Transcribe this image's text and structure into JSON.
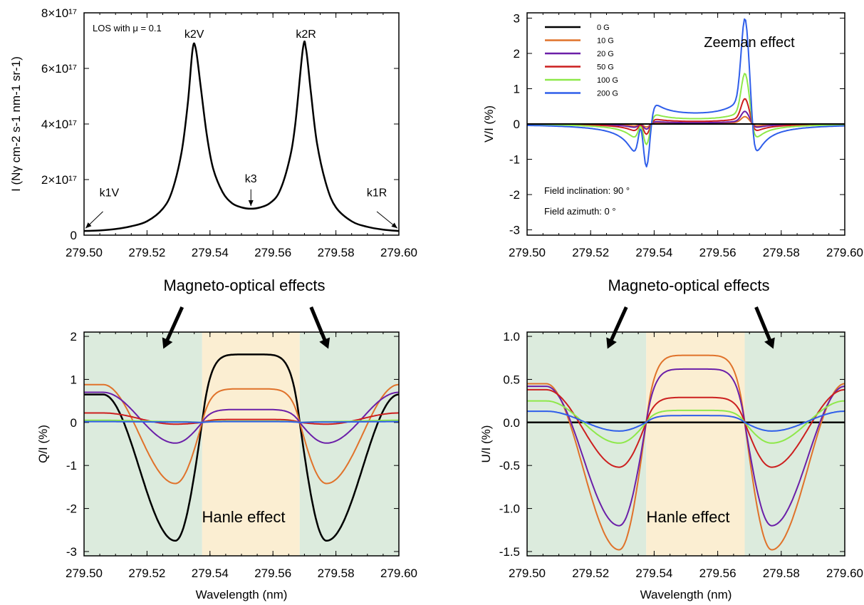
{
  "colors": {
    "0 G": "#000000",
    "10 G": "#E0722A",
    "20 G": "#6B1FA8",
    "50 G": "#CC1F1F",
    "100 G": "#8EE84A",
    "200 G": "#2F5EEA",
    "moe_region": "#DCEBDD",
    "hanle_region": "#FBEED2"
  },
  "chart_data": [
    {
      "id": "intensity",
      "type": "line",
      "ylabel": "I (Nγ cm-2 s-1 nm-1 sr-1)",
      "annotation": "LOS with μ = 0.1",
      "xlim": [
        279.5,
        279.6
      ],
      "ylim": [
        0,
        8e+17
      ],
      "xticks": [
        "279.50",
        "279.52",
        "279.54",
        "279.56",
        "279.58",
        "279.60"
      ],
      "yticks": [
        "0",
        "2×10¹⁷",
        "4×10¹⁷",
        "6×10¹⁷",
        "8×10¹⁷"
      ],
      "series": [
        {
          "x": [
            279.5,
            279.505,
            279.51,
            279.515,
            279.52,
            279.525,
            279.528,
            279.531,
            279.533,
            279.5345,
            279.5355,
            279.537,
            279.539,
            279.541,
            279.544,
            279.547,
            279.55,
            279.553,
            279.556,
            279.559,
            279.562,
            279.565,
            279.567,
            279.5695,
            279.5705,
            279.572,
            279.574,
            279.577,
            279.58,
            279.585,
            279.59,
            279.595,
            279.6
          ],
          "values": [
            1.5e+16,
            1.7e+16,
            2.2e+16,
            3.2e+16,
            5e+16,
            9.5e+16,
            1.6e+17,
            3e+17,
            4.8e+17,
            6.7e+17,
            6.7e+17,
            5.4e+17,
            3.6e+17,
            2.4e+17,
            1.55e+17,
            1.15e+17,
            1e+17,
            9.5e+16,
            1e+17,
            1.15e+17,
            1.55e+17,
            2.6e+17,
            3.9e+17,
            6.7e+17,
            6.7e+17,
            5.2e+17,
            3.3e+17,
            1.8e+17,
            1e+17,
            5e+16,
            3e+16,
            2e+16,
            1.5e+16
          ]
        }
      ],
      "labels": [
        {
          "text": "k2V",
          "x": 279.535,
          "y": 7.1e+17
        },
        {
          "text": "k2R",
          "x": 279.5705,
          "y": 7.1e+17
        },
        {
          "text": "k3",
          "x": 279.553,
          "y": 1.9e+17
        },
        {
          "text": "k1V",
          "x": 279.508,
          "y": 1.4e+17
        },
        {
          "text": "k1R",
          "x": 279.593,
          "y": 1.4e+17
        }
      ],
      "arrows": [
        {
          "from": [
            279.553,
            1.65e+17
          ],
          "to": [
            279.553,
            1.05e+17
          ]
        },
        {
          "from": [
            279.506,
            8.5e+16
          ],
          "to": [
            279.5005,
            2.5e+16
          ]
        },
        {
          "from": [
            279.593,
            8.5e+16
          ],
          "to": [
            279.5995,
            2.5e+16
          ]
        }
      ]
    },
    {
      "id": "stokes_v",
      "type": "line",
      "title": "Zeeman effect",
      "ylabel": "V/I (%)",
      "xlim": [
        279.5,
        279.6
      ],
      "ylim": [
        -3.15,
        3.15
      ],
      "xticks": [
        "279.50",
        "279.52",
        "279.54",
        "279.56",
        "279.58",
        "279.60"
      ],
      "yticks": [
        "-3",
        "-2",
        "-1",
        "0",
        "1",
        "2",
        "3"
      ],
      "notes": [
        "Field inclination: 90 °",
        "Field azimuth: 0 °"
      ],
      "legend": {
        "position": "top-left",
        "entries": [
          "0 G",
          "10 G",
          "20 G",
          "50 G",
          "100 G",
          "200 G"
        ]
      },
      "series": [
        {
          "name": "0 G",
          "amp": 0
        },
        {
          "name": "10 G",
          "amp": 0.07
        },
        {
          "name": "20 G",
          "amp": 0.12
        },
        {
          "name": "50 G",
          "amp": 0.24
        },
        {
          "name": "100 G",
          "amp": 0.48
        },
        {
          "name": "200 G",
          "amp": 1.0
        }
      ]
    },
    {
      "id": "stokes_q",
      "type": "line",
      "ylabel": "Q/I (%)",
      "xlabel": "Wavelength (nm)",
      "xlim": [
        279.5,
        279.6
      ],
      "ylim": [
        -3.1,
        2.1
      ],
      "xticks": [
        "279.50",
        "279.52",
        "279.54",
        "279.56",
        "279.58",
        "279.60"
      ],
      "yticks": [
        "-3",
        "-2",
        "-1",
        "0",
        "1",
        "2"
      ],
      "annotations": [
        "Magneto-optical effects",
        "Hanle effect"
      ],
      "regions": [
        {
          "kind": "moe",
          "x": [
            279.5,
            279.5375
          ]
        },
        {
          "kind": "hanle",
          "x": [
            279.5375,
            279.5685
          ]
        },
        {
          "kind": "moe",
          "x": [
            279.5685,
            279.6
          ]
        }
      ],
      "series": [
        {
          "name": "0 G",
          "edge": 0.65,
          "dip": -2.75,
          "center": 1.58
        },
        {
          "name": "10 G",
          "edge": 0.88,
          "dip": -1.42,
          "center": 0.78
        },
        {
          "name": "20 G",
          "edge": 0.7,
          "dip": -0.48,
          "center": 0.3
        },
        {
          "name": "50 G",
          "edge": 0.22,
          "dip": -0.04,
          "center": 0.07
        },
        {
          "name": "100 G",
          "edge": 0.05,
          "dip": 0.02,
          "center": 0.03
        },
        {
          "name": "200 G",
          "edge": 0.02,
          "dip": 0.01,
          "center": 0.02
        }
      ]
    },
    {
      "id": "stokes_u",
      "type": "line",
      "ylabel": "U/I (%)",
      "xlabel": "Wavelength (nm)",
      "xlim": [
        279.5,
        279.6
      ],
      "ylim": [
        -1.55,
        1.05
      ],
      "xticks": [
        "279.50",
        "279.52",
        "279.54",
        "279.56",
        "279.58",
        "279.60"
      ],
      "yticks": [
        "-1.5",
        "-1.0",
        "-0.5",
        "0.0",
        "0.5",
        "1.0"
      ],
      "annotations": [
        "Magneto-optical effects",
        "Hanle effect"
      ],
      "regions": [
        {
          "kind": "moe",
          "x": [
            279.5,
            279.5375
          ]
        },
        {
          "kind": "hanle",
          "x": [
            279.5375,
            279.5685
          ]
        },
        {
          "kind": "moe",
          "x": [
            279.5685,
            279.6
          ]
        }
      ],
      "series": [
        {
          "name": "0 G",
          "edge": 0.0,
          "dip": 0.0,
          "center": 0.0
        },
        {
          "name": "10 G",
          "edge": 0.45,
          "dip": -1.48,
          "center": 0.78
        },
        {
          "name": "20 G",
          "edge": 0.42,
          "dip": -1.2,
          "center": 0.62
        },
        {
          "name": "50 G",
          "edge": 0.38,
          "dip": -0.52,
          "center": 0.29
        },
        {
          "name": "100 G",
          "edge": 0.25,
          "dip": -0.24,
          "center": 0.14
        },
        {
          "name": "200 G",
          "edge": 0.13,
          "dip": -0.1,
          "center": 0.08
        }
      ]
    }
  ]
}
